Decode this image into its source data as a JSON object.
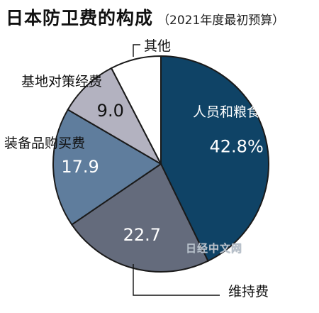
{
  "chart_data": {
    "type": "pie",
    "title": "日本防卫费的构成",
    "subtitle": "（2021年度最初预算）",
    "slices": [
      {
        "label": "人员和粮食经费",
        "value": 42.8,
        "value_label": "42.8%",
        "color": "#0f4366",
        "text_color": "#ffffff"
      },
      {
        "label": "维持费",
        "value": 22.7,
        "value_label": "22.7",
        "color": "#646b7c",
        "text_color": "#ffffff"
      },
      {
        "label": "装备品购买费",
        "value": 17.9,
        "value_label": "17.9",
        "color": "#5f7d9d",
        "text_color": "#ffffff"
      },
      {
        "label": "基地对策经费",
        "value": 9.0,
        "value_label": "9.0",
        "color": "#b3b2c0",
        "text_color": "#111111"
      },
      {
        "label": "其他",
        "value": 7.6,
        "value_label": "",
        "color": "#ffffff",
        "text_color": "#111111"
      }
    ],
    "start": "12 o'clock",
    "direction": "clockwise"
  },
  "watermark": "日经中文网"
}
